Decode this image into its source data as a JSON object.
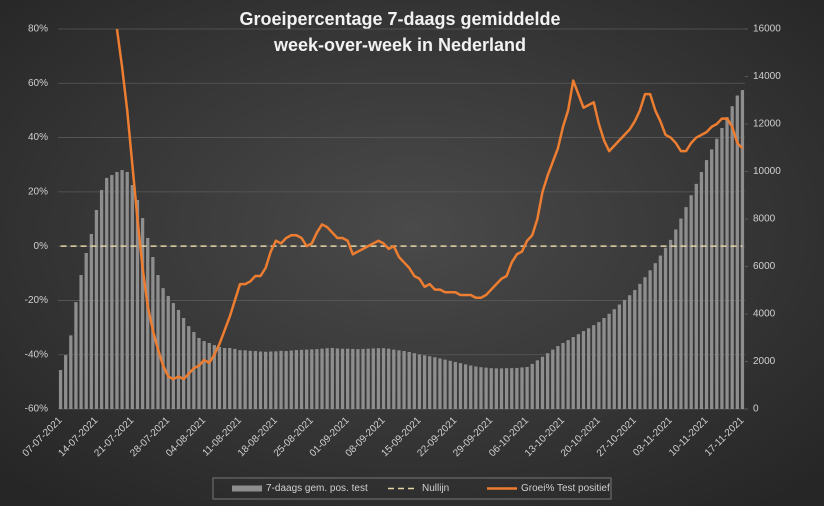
{
  "chart_data": {
    "type": "combo",
    "title": [
      "Groeipercentage 7-daags gemiddelde",
      "week-over-week in Nederland"
    ],
    "categories": [
      "07-07-2021",
      null,
      null,
      null,
      null,
      null,
      null,
      "14-07-2021",
      null,
      null,
      null,
      null,
      null,
      null,
      "21-07-2021",
      null,
      null,
      null,
      null,
      null,
      null,
      "28-07-2021",
      null,
      null,
      null,
      null,
      null,
      null,
      "04-08-2021",
      null,
      null,
      null,
      null,
      null,
      null,
      "11-08-2021",
      null,
      null,
      null,
      null,
      null,
      null,
      "18-08-2021",
      null,
      null,
      null,
      null,
      null,
      null,
      "25-08-2021",
      null,
      null,
      null,
      null,
      null,
      null,
      "01-09-2021",
      null,
      null,
      null,
      null,
      null,
      null,
      "08-09-2021",
      null,
      null,
      null,
      null,
      null,
      null,
      "15-09-2021",
      null,
      null,
      null,
      null,
      null,
      null,
      "22-09-2021",
      null,
      null,
      null,
      null,
      null,
      null,
      "29-09-2021",
      null,
      null,
      null,
      null,
      null,
      null,
      "06-10-2021",
      null,
      null,
      null,
      null,
      null,
      null,
      "13-10-2021",
      null,
      null,
      null,
      null,
      null,
      null,
      "20-10-2021",
      null,
      null,
      null,
      null,
      null,
      null,
      "27-10-2021",
      null,
      null,
      null,
      null,
      null,
      null,
      "03-11-2021",
      null,
      null,
      null,
      null,
      null,
      null,
      "10-11-2021",
      null,
      null,
      null,
      null,
      null,
      null,
      "17-11-2021"
    ],
    "series": [
      {
        "name": "7-daags gem. pos. test",
        "type": "bar",
        "axis": "y2",
        "color": "#8e8e8e",
        "values": [
          1640,
          2270,
          3100,
          4500,
          5640,
          6570,
          7370,
          8380,
          9220,
          9730,
          9850,
          9980,
          10060,
          9980,
          9430,
          8800,
          8040,
          7200,
          6400,
          5640,
          5090,
          4760,
          4460,
          4170,
          3830,
          3490,
          3240,
          2990,
          2860,
          2780,
          2690,
          2610,
          2570,
          2570,
          2530,
          2480,
          2470,
          2450,
          2440,
          2420,
          2410,
          2420,
          2430,
          2450,
          2440,
          2460,
          2480,
          2490,
          2500,
          2510,
          2520,
          2540,
          2560,
          2570,
          2550,
          2540,
          2540,
          2530,
          2520,
          2530,
          2540,
          2550,
          2560,
          2560,
          2540,
          2500,
          2470,
          2440,
          2400,
          2350,
          2300,
          2260,
          2220,
          2180,
          2130,
          2080,
          2030,
          1980,
          1930,
          1880,
          1830,
          1790,
          1760,
          1740,
          1720,
          1710,
          1710,
          1720,
          1720,
          1730,
          1750,
          1770,
          1900,
          2050,
          2200,
          2350,
          2500,
          2650,
          2780,
          2900,
          3030,
          3150,
          3280,
          3400,
          3530,
          3660,
          3830,
          4010,
          4200,
          4400,
          4590,
          4790,
          5010,
          5270,
          5550,
          5840,
          6140,
          6460,
          6790,
          7120,
          7560,
          8020,
          8500,
          9000,
          9480,
          9980,
          10480,
          10930,
          11380,
          11830,
          12290,
          12750,
          13200,
          13430
        ]
      },
      {
        "name": "Nullijn",
        "type": "line",
        "dash": true,
        "color": "#e6d5a6",
        "values": [
          0,
          0,
          0,
          0,
          0,
          0,
          0,
          0,
          0,
          0,
          0,
          0,
          0,
          0,
          0,
          0,
          0,
          0,
          0,
          0,
          0,
          0,
          0,
          0,
          0,
          0,
          0,
          0,
          0,
          0,
          0,
          0,
          0,
          0,
          0,
          0,
          0,
          0,
          0,
          0,
          0,
          0,
          0,
          0,
          0,
          0,
          0,
          0,
          0,
          0,
          0,
          0,
          0,
          0,
          0,
          0,
          0,
          0,
          0,
          0,
          0,
          0,
          0,
          0,
          0,
          0,
          0,
          0,
          0,
          0,
          0,
          0,
          0,
          0,
          0,
          0,
          0,
          0,
          0,
          0,
          0,
          0,
          0,
          0,
          0,
          0,
          0,
          0,
          0,
          0,
          0,
          0,
          0,
          0,
          0,
          0,
          0,
          0,
          0,
          0,
          0,
          0,
          0,
          0,
          0,
          0,
          0,
          0,
          0,
          0,
          0,
          0,
          0,
          0,
          0,
          0,
          0,
          0,
          0,
          0,
          0,
          0,
          0,
          0,
          0,
          0,
          0,
          0,
          0,
          0,
          0,
          0,
          0,
          0
        ]
      },
      {
        "name": "Groei% Test positief",
        "type": "line",
        "color": "#ed7d31",
        "values": [
          null,
          null,
          null,
          null,
          null,
          null,
          null,
          null,
          null,
          null,
          null,
          80,
          66,
          50,
          30,
          10,
          -8,
          -22,
          -31,
          -38,
          -44,
          -48,
          -49,
          -48,
          -49,
          -47,
          -45,
          -44,
          -42,
          -43,
          -40,
          -36,
          -31,
          -26,
          -20,
          -14,
          -14,
          -13,
          -11,
          -11,
          -8,
          -2,
          2,
          1,
          3,
          4,
          4,
          3,
          0,
          1,
          5,
          8,
          7,
          5,
          3,
          3,
          2,
          -3,
          -2,
          -1,
          0,
          1,
          2,
          1,
          -1,
          0,
          -4,
          -6,
          -8,
          -11,
          -12,
          -15,
          -14,
          -16,
          -16,
          -17,
          -17,
          -17,
          -18,
          -18,
          -18,
          -19,
          -19,
          -18,
          -16,
          -14,
          -12,
          -11,
          -6,
          -3,
          -2,
          2,
          4,
          10,
          20,
          26,
          31,
          36,
          44,
          50,
          61,
          56,
          51,
          52,
          53,
          45,
          39,
          35,
          37,
          39,
          41,
          43,
          46,
          50,
          56,
          56,
          50,
          46,
          41,
          40,
          38,
          35,
          35,
          38,
          40,
          41,
          42,
          44,
          45,
          47,
          47,
          44,
          38,
          36
        ]
      }
    ],
    "ylim": [
      -60,
      80
    ],
    "yticks": [
      {
        "value": -60,
        "label": "-60%"
      },
      {
        "value": -40,
        "label": "-40%"
      },
      {
        "value": -20,
        "label": "-20%"
      },
      {
        "value": 0,
        "label": "0%"
      },
      {
        "value": 20,
        "label": "20%"
      },
      {
        "value": 40,
        "label": "40%"
      },
      {
        "value": 60,
        "label": "60%"
      },
      {
        "value": 80,
        "label": "80%"
      }
    ],
    "y2lim": [
      0,
      16000
    ],
    "y2ticks": [
      0,
      2000,
      4000,
      6000,
      8000,
      10000,
      12000,
      14000,
      16000
    ],
    "grid": true,
    "legend": "bottom"
  }
}
